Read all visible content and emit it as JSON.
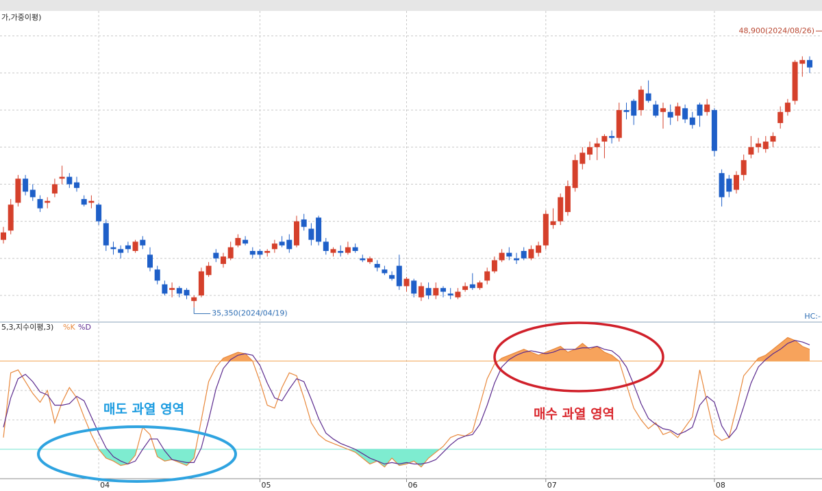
{
  "chart_data": [
    {
      "type": "candlestick",
      "title": "가,가중이평)",
      "categories": [
        null,
        null,
        null,
        null,
        null,
        null,
        null,
        null,
        null,
        null,
        null,
        null,
        null,
        "04",
        null,
        null,
        null,
        null,
        null,
        null,
        null,
        null,
        null,
        null,
        null,
        null,
        null,
        null,
        null,
        null,
        null,
        null,
        null,
        null,
        null,
        "05",
        null,
        null,
        null,
        null,
        null,
        null,
        null,
        null,
        null,
        null,
        null,
        null,
        null,
        null,
        null,
        null,
        null,
        null,
        null,
        "06",
        null,
        null,
        null,
        null,
        null,
        null,
        null,
        null,
        null,
        null,
        null,
        null,
        null,
        null,
        null,
        null,
        null,
        null,
        "07",
        null,
        null,
        null,
        null,
        null,
        null,
        null,
        null,
        null,
        null,
        null,
        null,
        null,
        null,
        null,
        null,
        null,
        null,
        null,
        null,
        null,
        null,
        "08",
        null,
        null,
        null,
        null,
        null,
        null,
        null,
        null,
        null,
        null,
        null,
        null,
        null
      ],
      "open": [
        39000,
        39500,
        41000,
        42300,
        41700,
        41200,
        41000,
        41500,
        42300,
        42400,
        42100,
        41200,
        41000,
        40900,
        39900,
        38600,
        38500,
        38700,
        38400,
        39000,
        38200,
        37400,
        36600,
        36300,
        36400,
        36300,
        35700,
        36000,
        37100,
        38300,
        37700,
        38000,
        38700,
        39000,
        38400,
        38400,
        38300,
        38500,
        38900,
        39000,
        38700,
        40100,
        39600,
        40200,
        38900,
        38300,
        38400,
        38300,
        38600,
        38000,
        37800,
        37700,
        37400,
        37100,
        37600,
        36500,
        36800,
        35900,
        36400,
        36000,
        36400,
        36100,
        35900,
        36300,
        36600,
        36400,
        36800,
        37300,
        37900,
        38300,
        38000,
        38400,
        38000,
        38300,
        38700,
        39800,
        40000,
        40500,
        41800,
        43100,
        43600,
        44000,
        44300,
        44600,
        44500,
        46000,
        46500,
        46000,
        46900,
        46300,
        45900,
        45900,
        45700,
        46100,
        45600,
        46300,
        45900,
        46000,
        42600,
        42300,
        41700,
        42500,
        43600,
        44000,
        43900,
        44300,
        45300,
        45900,
        46500,
        48500,
        48700
      ],
      "high": [
        39700,
        41200,
        42500,
        42500,
        42000,
        41400,
        41300,
        42300,
        43000,
        42600,
        42400,
        41400,
        41400,
        41000,
        40100,
        38900,
        38700,
        38900,
        39000,
        39200,
        38600,
        37600,
        36800,
        36700,
        36500,
        36400,
        36000,
        37500,
        37800,
        38500,
        38300,
        38900,
        39300,
        39200,
        38600,
        38500,
        38500,
        39000,
        39200,
        39300,
        40300,
        40400,
        39900,
        40300,
        39100,
        38600,
        38700,
        38900,
        38800,
        38200,
        38100,
        37900,
        37600,
        37300,
        38200,
        37000,
        36900,
        36700,
        36700,
        36700,
        36500,
        36400,
        36400,
        36700,
        37200,
        36800,
        37500,
        38100,
        38500,
        38600,
        38300,
        38600,
        38700,
        38900,
        40600,
        40700,
        41500,
        42200,
        43600,
        44000,
        44300,
        44500,
        44700,
        44900,
        46400,
        46400,
        46600,
        47300,
        47600,
        46500,
        46400,
        46300,
        46400,
        46300,
        45900,
        46400,
        46600,
        46100,
        42800,
        42500,
        42700,
        43600,
        44600,
        44500,
        44600,
        44800,
        46200,
        46600,
        48700,
        48900,
        48900
      ],
      "low": [
        38800,
        39300,
        40800,
        41400,
        41100,
        40500,
        40700,
        41300,
        42000,
        41800,
        41600,
        40800,
        40700,
        39800,
        38400,
        38200,
        38000,
        38300,
        38300,
        38500,
        37300,
        36600,
        36000,
        35900,
        35900,
        35800,
        35350,
        35900,
        37000,
        37800,
        37500,
        37900,
        38600,
        38700,
        38000,
        38000,
        38100,
        38300,
        38600,
        38300,
        38600,
        39500,
        38700,
        38700,
        38200,
        38100,
        38100,
        38200,
        38300,
        37800,
        37700,
        37300,
        37100,
        36800,
        36300,
        36200,
        35900,
        35700,
        35800,
        35800,
        35900,
        35800,
        35800,
        36200,
        36300,
        36300,
        36600,
        37200,
        37800,
        37900,
        37700,
        37900,
        37900,
        38100,
        38500,
        39600,
        39800,
        40300,
        41600,
        42800,
        43300,
        43300,
        43400,
        44200,
        44300,
        45500,
        45200,
        45700,
        46400,
        45600,
        45000,
        45200,
        45400,
        45300,
        45000,
        45100,
        45700,
        43500,
        40800,
        41300,
        41500,
        42200,
        43400,
        43700,
        43700,
        44000,
        45000,
        45700,
        46300,
        47800,
        48000
      ],
      "close": [
        39400,
        40900,
        42300,
        41600,
        41300,
        40700,
        41100,
        42000,
        42400,
        42000,
        41800,
        40900,
        41100,
        40000,
        38700,
        38500,
        38300,
        38500,
        38900,
        38700,
        37500,
        36800,
        36100,
        36400,
        36100,
        36000,
        35900,
        37300,
        37600,
        38000,
        38100,
        38600,
        39100,
        38800,
        38200,
        38200,
        38400,
        38800,
        38700,
        38500,
        40000,
        39700,
        39000,
        38900,
        38400,
        38500,
        38300,
        38600,
        38400,
        37900,
        38000,
        37500,
        37200,
        36900,
        36500,
        36900,
        36100,
        36500,
        36000,
        36400,
        36200,
        36000,
        36200,
        36500,
        36400,
        36700,
        37300,
        37900,
        38300,
        38100,
        37900,
        38000,
        38500,
        38700,
        40400,
        40000,
        41300,
        41900,
        43300,
        43700,
        44000,
        44200,
        44600,
        44500,
        46000,
        45900,
        45700,
        47100,
        46500,
        45700,
        46100,
        45600,
        46200,
        45500,
        45200,
        45700,
        46300,
        43800,
        41300,
        41600,
        42500,
        43300,
        44000,
        44200,
        44300,
        44600,
        45900,
        46400,
        48600,
        48700,
        48300
      ],
      "up_color": "#d5402b",
      "down_color": "#1e5fc8",
      "ylim": [
        34600,
        51200
      ],
      "yticks": [
        36000,
        38000,
        40000,
        42000,
        44000,
        46000,
        48000,
        50000
      ],
      "grid": true,
      "annotations": [
        {
          "label": "48,900(2024/08/26)",
          "value": 48900,
          "color": "#b8452f"
        },
        {
          "label": "35,350(2024/04/19)",
          "value": 35350,
          "color": "#2d6db3"
        }
      ],
      "crosshair_label": "HC:-"
    },
    {
      "type": "line",
      "title": "5,3,지수이평,3)",
      "series": [
        {
          "name": "%K",
          "color": "#e8873a",
          "values": [
            28,
            72,
            74,
            66,
            58,
            52,
            60,
            38,
            52,
            62,
            55,
            42,
            30,
            20,
            14,
            12,
            9,
            10,
            16,
            35,
            30,
            15,
            12,
            13,
            11,
            9,
            14,
            40,
            66,
            76,
            82,
            84,
            86,
            85,
            80,
            66,
            50,
            48,
            62,
            72,
            70,
            55,
            38,
            30,
            26,
            24,
            22,
            20,
            18,
            14,
            10,
            12,
            8,
            14,
            9,
            10,
            12,
            8,
            14,
            18,
            22,
            28,
            30,
            29,
            32,
            50,
            68,
            78,
            82,
            84,
            86,
            88,
            86,
            84,
            86,
            88,
            90,
            86,
            88,
            92,
            88,
            90,
            86,
            84,
            80,
            64,
            48,
            40,
            34,
            38,
            30,
            32,
            28,
            35,
            42,
            74,
            52,
            30,
            26,
            28,
            48,
            70,
            76,
            82,
            84,
            88,
            92,
            96,
            94,
            90,
            88
          ]
        },
        {
          "name": "%D",
          "color": "#5b2a8e",
          "values": [
            35,
            55,
            68,
            71,
            66,
            59,
            57,
            50,
            50,
            51,
            56,
            53,
            42,
            31,
            21,
            15,
            12,
            10,
            12,
            20,
            27,
            27,
            19,
            13,
            12,
            11,
            11,
            21,
            40,
            61,
            75,
            81,
            84,
            85,
            84,
            77,
            65,
            55,
            53,
            61,
            68,
            66,
            54,
            41,
            31,
            27,
            24,
            22,
            20,
            17,
            14,
            12,
            10,
            11,
            10,
            11,
            10,
            10,
            11,
            13,
            18,
            23,
            27,
            29,
            30,
            37,
            50,
            65,
            76,
            81,
            84,
            86,
            87,
            86,
            85,
            86,
            88,
            88,
            88,
            89,
            89,
            90,
            88,
            87,
            83,
            76,
            64,
            51,
            41,
            37,
            34,
            33,
            30,
            32,
            35,
            50,
            56,
            52,
            36,
            28,
            34,
            49,
            65,
            76,
            81,
            85,
            88,
            92,
            94,
            93,
            91
          ]
        }
      ],
      "ylim": [
        0,
        100
      ],
      "yticks": [
        40,
        60
      ],
      "grid": true,
      "levels": [
        {
          "value": 80,
          "color": "#f2a24e",
          "fill": "#f7a35c"
        },
        {
          "value": 20,
          "color": "#6fe3cf",
          "fill": "#7eecd0"
        }
      ],
      "annotations": [
        {
          "text": "매도 과열 영역",
          "color": "#1a9be0"
        },
        {
          "text": "매수 과열 영역",
          "color": "#d9262c"
        }
      ]
    }
  ]
}
